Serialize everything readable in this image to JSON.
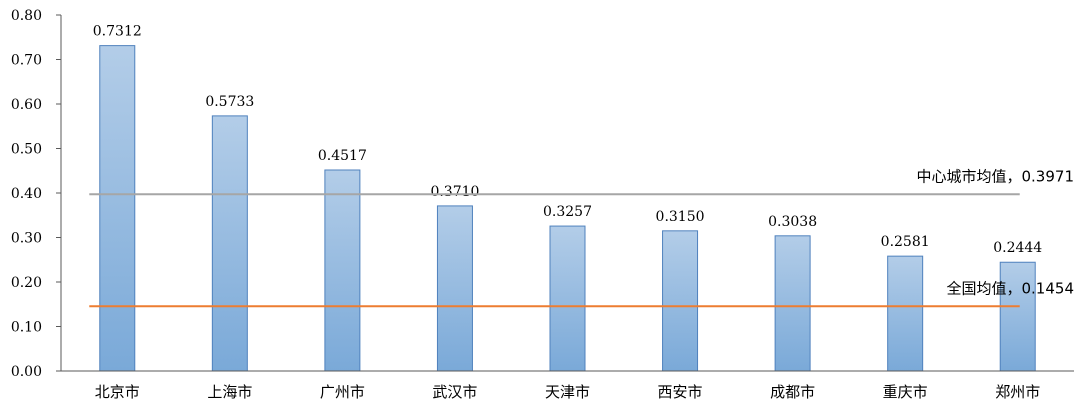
{
  "chart_data": {
    "type": "bar",
    "categories": [
      "北京市",
      "上海市",
      "广州市",
      "武汉市",
      "天津市",
      "西安市",
      "成都市",
      "重庆市",
      "郑州市"
    ],
    "values": [
      0.7312,
      0.5733,
      0.4517,
      0.371,
      0.3257,
      0.315,
      0.3038,
      0.2581,
      0.2444
    ],
    "value_labels": [
      "0.7312",
      "0.5733",
      "0.4517",
      "0.3710",
      "0.3257",
      "0.3150",
      "0.3038",
      "0.2581",
      "0.2444"
    ],
    "ylim": [
      0,
      0.8
    ],
    "yticks": [
      0.0,
      0.1,
      0.2,
      0.3,
      0.4,
      0.5,
      0.6,
      0.7,
      0.8
    ],
    "ytick_labels": [
      "0.00",
      "0.10",
      "0.20",
      "0.30",
      "0.40",
      "0.50",
      "0.60",
      "0.70",
      "0.80"
    ],
    "grid": false,
    "bar_gradient": [
      "#b3cde8",
      "#7aa9d8"
    ],
    "bar_edge_color": "#4f81bd",
    "reference_lines": [
      {
        "value": 0.3971,
        "label": "中心城市均值，0.3971",
        "color": "#a6a6a6"
      },
      {
        "value": 0.1454,
        "label": "全国均值，0.1454",
        "color": "#ed7d31"
      }
    ]
  }
}
